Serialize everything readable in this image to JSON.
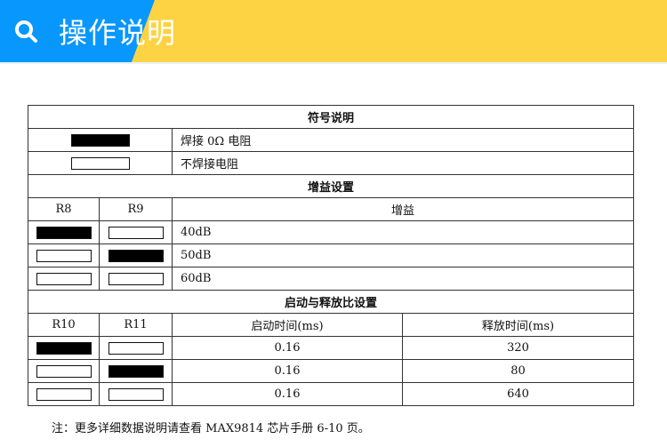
{
  "header": {
    "title": "操作说明",
    "icon": "search-icon",
    "colors": {
      "blue": "#0897fd",
      "yellow": "#fed343"
    }
  },
  "legend": {
    "title": "符号说明",
    "rows": [
      {
        "state": "soldered",
        "label": "焊接 0Ω 电阻"
      },
      {
        "state": "open",
        "label": "不焊接电阻"
      }
    ]
  },
  "gain": {
    "title": "增益设置",
    "columns": [
      "R8",
      "R9",
      "增益"
    ],
    "rows": [
      {
        "r8": "soldered",
        "r9": "open",
        "value": "40dB"
      },
      {
        "r8": "open",
        "r9": "soldered",
        "value": "50dB"
      },
      {
        "r8": "open",
        "r9": "open",
        "value": "60dB"
      }
    ]
  },
  "attack": {
    "title": "启动与释放比设置",
    "columns": [
      "R10",
      "R11",
      "启动时间(ms)",
      "释放时间(ms)"
    ],
    "rows": [
      {
        "r10": "soldered",
        "r11": "open",
        "attack": "0.16",
        "release": "320"
      },
      {
        "r10": "open",
        "r11": "soldered",
        "attack": "0.16",
        "release": "80"
      },
      {
        "r10": "open",
        "r11": "open",
        "attack": "0.16",
        "release": "640"
      }
    ]
  },
  "note": "注：更多详细数据说明请查看 MAX9814 芯片手册 6-10 页。"
}
